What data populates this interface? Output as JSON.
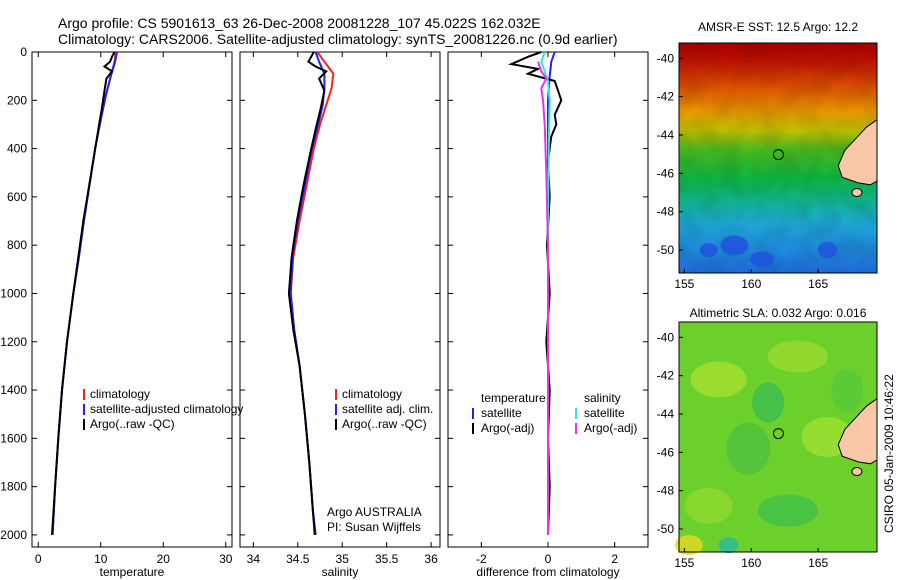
{
  "header": {
    "line1": "Argo profile: CS 5901613_63 26-Dec-2008 20081228_107 45.022S 162.032E",
    "line2": "Climatology: CARS2006. Satellite-adjusted climatology: synTS_20081226.nc (0.9d earlier)"
  },
  "footer_note": "CSIRO 05-Jan-2009 10:46:22",
  "colors": {
    "red": "#ff1f1f",
    "blue": "#1f1fff",
    "black": "#000000",
    "cyan": "#33e6e6",
    "magenta": "#e633e6",
    "land": "#f8c8a8"
  },
  "chart_data": [
    {
      "type": "line",
      "xlabel": "temperature",
      "ylabel": "",
      "xlim": [
        -1,
        31
      ],
      "ylim": [
        2050,
        0
      ],
      "y_reversed": true,
      "xticks": [
        "0",
        "10",
        "20",
        "30"
      ],
      "yticks": [
        "0",
        "200",
        "400",
        "600",
        "800",
        "1000",
        "1200",
        "1400",
        "1600",
        "1800",
        "2000"
      ],
      "legend": {
        "placement": "lower-center",
        "entries": [
          "climatology",
          "satellite-adjusted climatology",
          "Argo(..raw -QC)"
        ]
      },
      "series": [
        {
          "name": "climatology",
          "color": "red",
          "points": [
            [
              12.4,
              0
            ],
            [
              12.2,
              40
            ],
            [
              11.6,
              100
            ],
            [
              10.8,
              180
            ],
            [
              10.0,
              280
            ],
            [
              9.1,
              400
            ],
            [
              8.2,
              550
            ],
            [
              7.3,
              700
            ],
            [
              6.5,
              850
            ],
            [
              5.6,
              1000
            ],
            [
              4.6,
              1200
            ],
            [
              3.8,
              1400
            ],
            [
              3.2,
              1600
            ],
            [
              2.7,
              1800
            ],
            [
              2.3,
              2000
            ]
          ]
        },
        {
          "name": "satellite-adjusted climatology",
          "color": "blue",
          "points": [
            [
              12.6,
              0
            ],
            [
              12.3,
              40
            ],
            [
              11.6,
              100
            ],
            [
              10.8,
              180
            ],
            [
              10.0,
              280
            ],
            [
              9.1,
              400
            ],
            [
              8.2,
              550
            ],
            [
              7.3,
              700
            ],
            [
              6.5,
              850
            ],
            [
              5.6,
              1000
            ],
            [
              4.6,
              1200
            ],
            [
              3.8,
              1400
            ],
            [
              3.2,
              1600
            ],
            [
              2.7,
              1800
            ],
            [
              2.3,
              2000
            ]
          ]
        },
        {
          "name": "Argo(..raw -QC)",
          "color": "black",
          "points": [
            [
              12.2,
              0
            ],
            [
              11.8,
              20
            ],
            [
              11.5,
              40
            ],
            [
              10.6,
              60
            ],
            [
              11.8,
              80
            ],
            [
              10.9,
              110
            ],
            [
              10.6,
              160
            ],
            [
              10.2,
              230
            ],
            [
              9.6,
              320
            ],
            [
              9.0,
              420
            ],
            [
              8.1,
              560
            ],
            [
              7.2,
              700
            ],
            [
              6.4,
              850
            ],
            [
              5.6,
              1000
            ],
            [
              4.6,
              1200
            ],
            [
              3.8,
              1400
            ],
            [
              3.2,
              1600
            ],
            [
              2.7,
              1800
            ],
            [
              2.2,
              2000
            ]
          ]
        }
      ]
    },
    {
      "type": "line",
      "xlabel": "salinity",
      "ylabel": "",
      "xlim": [
        33.85,
        36.1
      ],
      "ylim": [
        2050,
        0
      ],
      "y_reversed": true,
      "xticks": [
        "34",
        "34.5",
        "35",
        "35.5",
        "36"
      ],
      "legend": {
        "placement": "lower-right",
        "entries": [
          "climatology",
          "satellite adj. clim.",
          "Argo(..raw -QC)"
        ]
      },
      "annotation": [
        "Argo AUSTRALIA",
        "PI: Susan Wijffels"
      ],
      "series": [
        {
          "name": "climatology",
          "color": "red",
          "points": [
            [
              34.72,
              0
            ],
            [
              34.8,
              40
            ],
            [
              34.9,
              90
            ],
            [
              34.88,
              150
            ],
            [
              34.82,
              220
            ],
            [
              34.75,
              300
            ],
            [
              34.68,
              400
            ],
            [
              34.6,
              550
            ],
            [
              34.52,
              700
            ],
            [
              34.45,
              850
            ],
            [
              34.42,
              1000
            ],
            [
              34.46,
              1150
            ],
            [
              34.52,
              1300
            ],
            [
              34.58,
              1500
            ],
            [
              34.63,
              1700
            ],
            [
              34.67,
              1900
            ],
            [
              34.7,
              2000
            ]
          ]
        },
        {
          "name": "satellite adj. clim.",
          "color": "blue",
          "points": [
            [
              34.7,
              0
            ],
            [
              34.74,
              40
            ],
            [
              34.8,
              90
            ],
            [
              34.8,
              150
            ],
            [
              34.78,
              220
            ],
            [
              34.73,
              300
            ],
            [
              34.66,
              400
            ],
            [
              34.58,
              550
            ],
            [
              34.5,
              700
            ],
            [
              34.44,
              850
            ],
            [
              34.42,
              1000
            ],
            [
              34.46,
              1150
            ],
            [
              34.52,
              1300
            ],
            [
              34.58,
              1500
            ],
            [
              34.63,
              1700
            ],
            [
              34.67,
              1900
            ],
            [
              34.7,
              2000
            ]
          ]
        },
        {
          "name": "Argo(..raw -QC)",
          "color": "black",
          "points": [
            [
              34.68,
              0
            ],
            [
              34.62,
              40
            ],
            [
              34.7,
              60
            ],
            [
              34.82,
              80
            ],
            [
              34.74,
              110
            ],
            [
              34.8,
              160
            ],
            [
              34.76,
              230
            ],
            [
              34.7,
              320
            ],
            [
              34.64,
              420
            ],
            [
              34.56,
              560
            ],
            [
              34.49,
              700
            ],
            [
              34.43,
              850
            ],
            [
              34.4,
              1000
            ],
            [
              34.45,
              1150
            ],
            [
              34.52,
              1300
            ],
            [
              34.58,
              1500
            ],
            [
              34.63,
              1700
            ],
            [
              34.67,
              1900
            ],
            [
              34.69,
              2000
            ]
          ]
        }
      ]
    },
    {
      "type": "line",
      "xlabel": "difference from climatology",
      "ylabel": "",
      "xlim": [
        -3,
        3
      ],
      "ylim": [
        2050,
        0
      ],
      "y_reversed": true,
      "xticks": [
        "-2",
        "0",
        "2"
      ],
      "legend": {
        "placement": "lower-center",
        "headers": [
          "temperature",
          "salinity"
        ],
        "entries": [
          "satellite",
          "Argo(-adj)",
          "satellite",
          "Argo(-adj)"
        ]
      },
      "series": [
        {
          "name": "temperature satellite",
          "color": "blue",
          "points": [
            [
              0.2,
              0
            ],
            [
              0.1,
              40
            ],
            [
              0.05,
              100
            ],
            [
              0.0,
              200
            ],
            [
              0.0,
              600
            ],
            [
              0.0,
              1000
            ],
            [
              0.0,
              1400
            ],
            [
              0.0,
              2000
            ]
          ]
        },
        {
          "name": "temperature Argo(-adj)",
          "color": "black",
          "points": [
            [
              -0.2,
              0
            ],
            [
              -0.6,
              20
            ],
            [
              -1.1,
              50
            ],
            [
              -0.3,
              70
            ],
            [
              -0.6,
              90
            ],
            [
              0.2,
              120
            ],
            [
              0.3,
              160
            ],
            [
              0.4,
              200
            ],
            [
              0.2,
              260
            ],
            [
              0.25,
              300
            ],
            [
              0.1,
              350
            ],
            [
              0.0,
              450
            ],
            [
              0.05,
              600
            ],
            [
              -0.03,
              800
            ],
            [
              0.05,
              1000
            ],
            [
              -0.05,
              1200
            ],
            [
              0.05,
              1400
            ],
            [
              0.0,
              1600
            ],
            [
              0.05,
              1800
            ],
            [
              0.0,
              2000
            ]
          ]
        },
        {
          "name": "salinity satellite",
          "color": "cyan",
          "points": [
            [
              -0.1,
              0
            ],
            [
              -0.2,
              40
            ],
            [
              -0.1,
              80
            ],
            [
              0.0,
              120
            ],
            [
              0.05,
              200
            ],
            [
              0.02,
              400
            ],
            [
              0.0,
              700
            ],
            [
              0.0,
              1000
            ],
            [
              0.0,
              1400
            ],
            [
              0.0,
              2000
            ]
          ]
        },
        {
          "name": "salinity Argo(-adj)",
          "color": "magenta",
          "points": [
            [
              -0.3,
              40
            ],
            [
              -0.2,
              80
            ],
            [
              -0.05,
              110
            ],
            [
              -0.2,
              150
            ],
            [
              -0.15,
              200
            ],
            [
              -0.1,
              300
            ],
            [
              -0.05,
              500
            ],
            [
              0.0,
              800
            ],
            [
              0.0,
              1000
            ],
            [
              0.0,
              1400
            ],
            [
              0.0,
              2000
            ]
          ]
        }
      ]
    },
    {
      "type": "heatmap",
      "title": "AMSR-E SST: 12.5 Argo: 12.2",
      "xlim": [
        154.6,
        169.4
      ],
      "ylim": [
        -51.2,
        -39.2
      ],
      "xticks": [
        "155",
        "160",
        "165"
      ],
      "yticks": [
        "-40",
        "-42",
        "-44",
        "-46",
        "-48",
        "-50"
      ],
      "marker": {
        "lon": 162.032,
        "lat": -45.022
      }
    },
    {
      "type": "heatmap",
      "title": "Altimetric SLA: 0.032 Argo: 0.016",
      "xlim": [
        154.6,
        169.4
      ],
      "ylim": [
        -51.2,
        -39.2
      ],
      "xticks": [
        "155",
        "160",
        "165"
      ],
      "yticks": [
        "-40",
        "-42",
        "-44",
        "-46",
        "-48",
        "-50"
      ],
      "marker": {
        "lon": 162.032,
        "lat": -45.022
      }
    }
  ]
}
